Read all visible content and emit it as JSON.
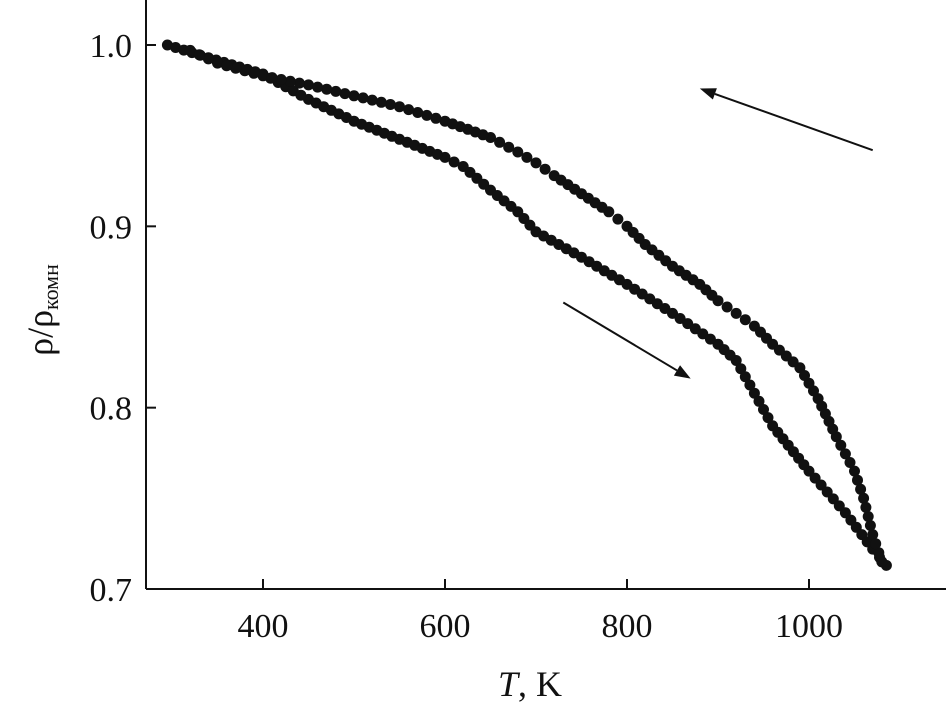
{
  "chart_data": {
    "type": "scatter",
    "title": "",
    "xlabel": {
      "symbol": "T",
      "unit": ", K"
    },
    "ylabel": {
      "main": "ρ/ρ",
      "subscript": "комн"
    },
    "xlim": [
      270,
      1150
    ],
    "ylim": [
      0.7,
      1.03
    ],
    "xticks": [
      400,
      600,
      800,
      1000
    ],
    "yticks": [
      0.7,
      0.8,
      0.9,
      1.0
    ],
    "xtick_labels": [
      "400",
      "600",
      "800",
      "1000"
    ],
    "ytick_labels": [
      "0.7",
      "0.8",
      "0.9",
      "1.0"
    ],
    "grid": false,
    "legend": "none",
    "marker_color": "#111111",
    "series": [
      {
        "direction": "heating",
        "x": [
          295,
          340,
          400,
          450,
          500,
          550,
          600,
          620,
          650,
          680,
          700,
          750,
          800,
          850,
          900,
          920,
          940,
          960,
          1000,
          1040,
          1070,
          1085
        ],
        "y": [
          1.0,
          0.993,
          0.984,
          0.97,
          0.958,
          0.948,
          0.938,
          0.933,
          0.92,
          0.908,
          0.897,
          0.883,
          0.868,
          0.852,
          0.835,
          0.826,
          0.808,
          0.79,
          0.765,
          0.742,
          0.722,
          0.713
        ]
      },
      {
        "direction": "cooling",
        "x": [
          1080,
          1070,
          1060,
          1050,
          1030,
          1010,
          990,
          960,
          940,
          920,
          900,
          880,
          850,
          820,
          800,
          780,
          750,
          720,
          700,
          680,
          650,
          600,
          550,
          500,
          450,
          400,
          350,
          320
        ],
        "y": [
          0.715,
          0.73,
          0.75,
          0.765,
          0.784,
          0.805,
          0.822,
          0.835,
          0.845,
          0.852,
          0.859,
          0.868,
          0.878,
          0.89,
          0.9,
          0.908,
          0.918,
          0.928,
          0.935,
          0.941,
          0.949,
          0.958,
          0.966,
          0.972,
          0.978,
          0.983,
          0.99,
          0.997
        ]
      }
    ],
    "annotations": [
      {
        "type": "arrow",
        "meaning": "heating",
        "from": [
          730,
          0.858
        ],
        "to": [
          870,
          0.816
        ]
      },
      {
        "type": "arrow",
        "meaning": "cooling",
        "from": [
          1070,
          0.942
        ],
        "to": [
          880,
          0.976
        ]
      }
    ]
  }
}
